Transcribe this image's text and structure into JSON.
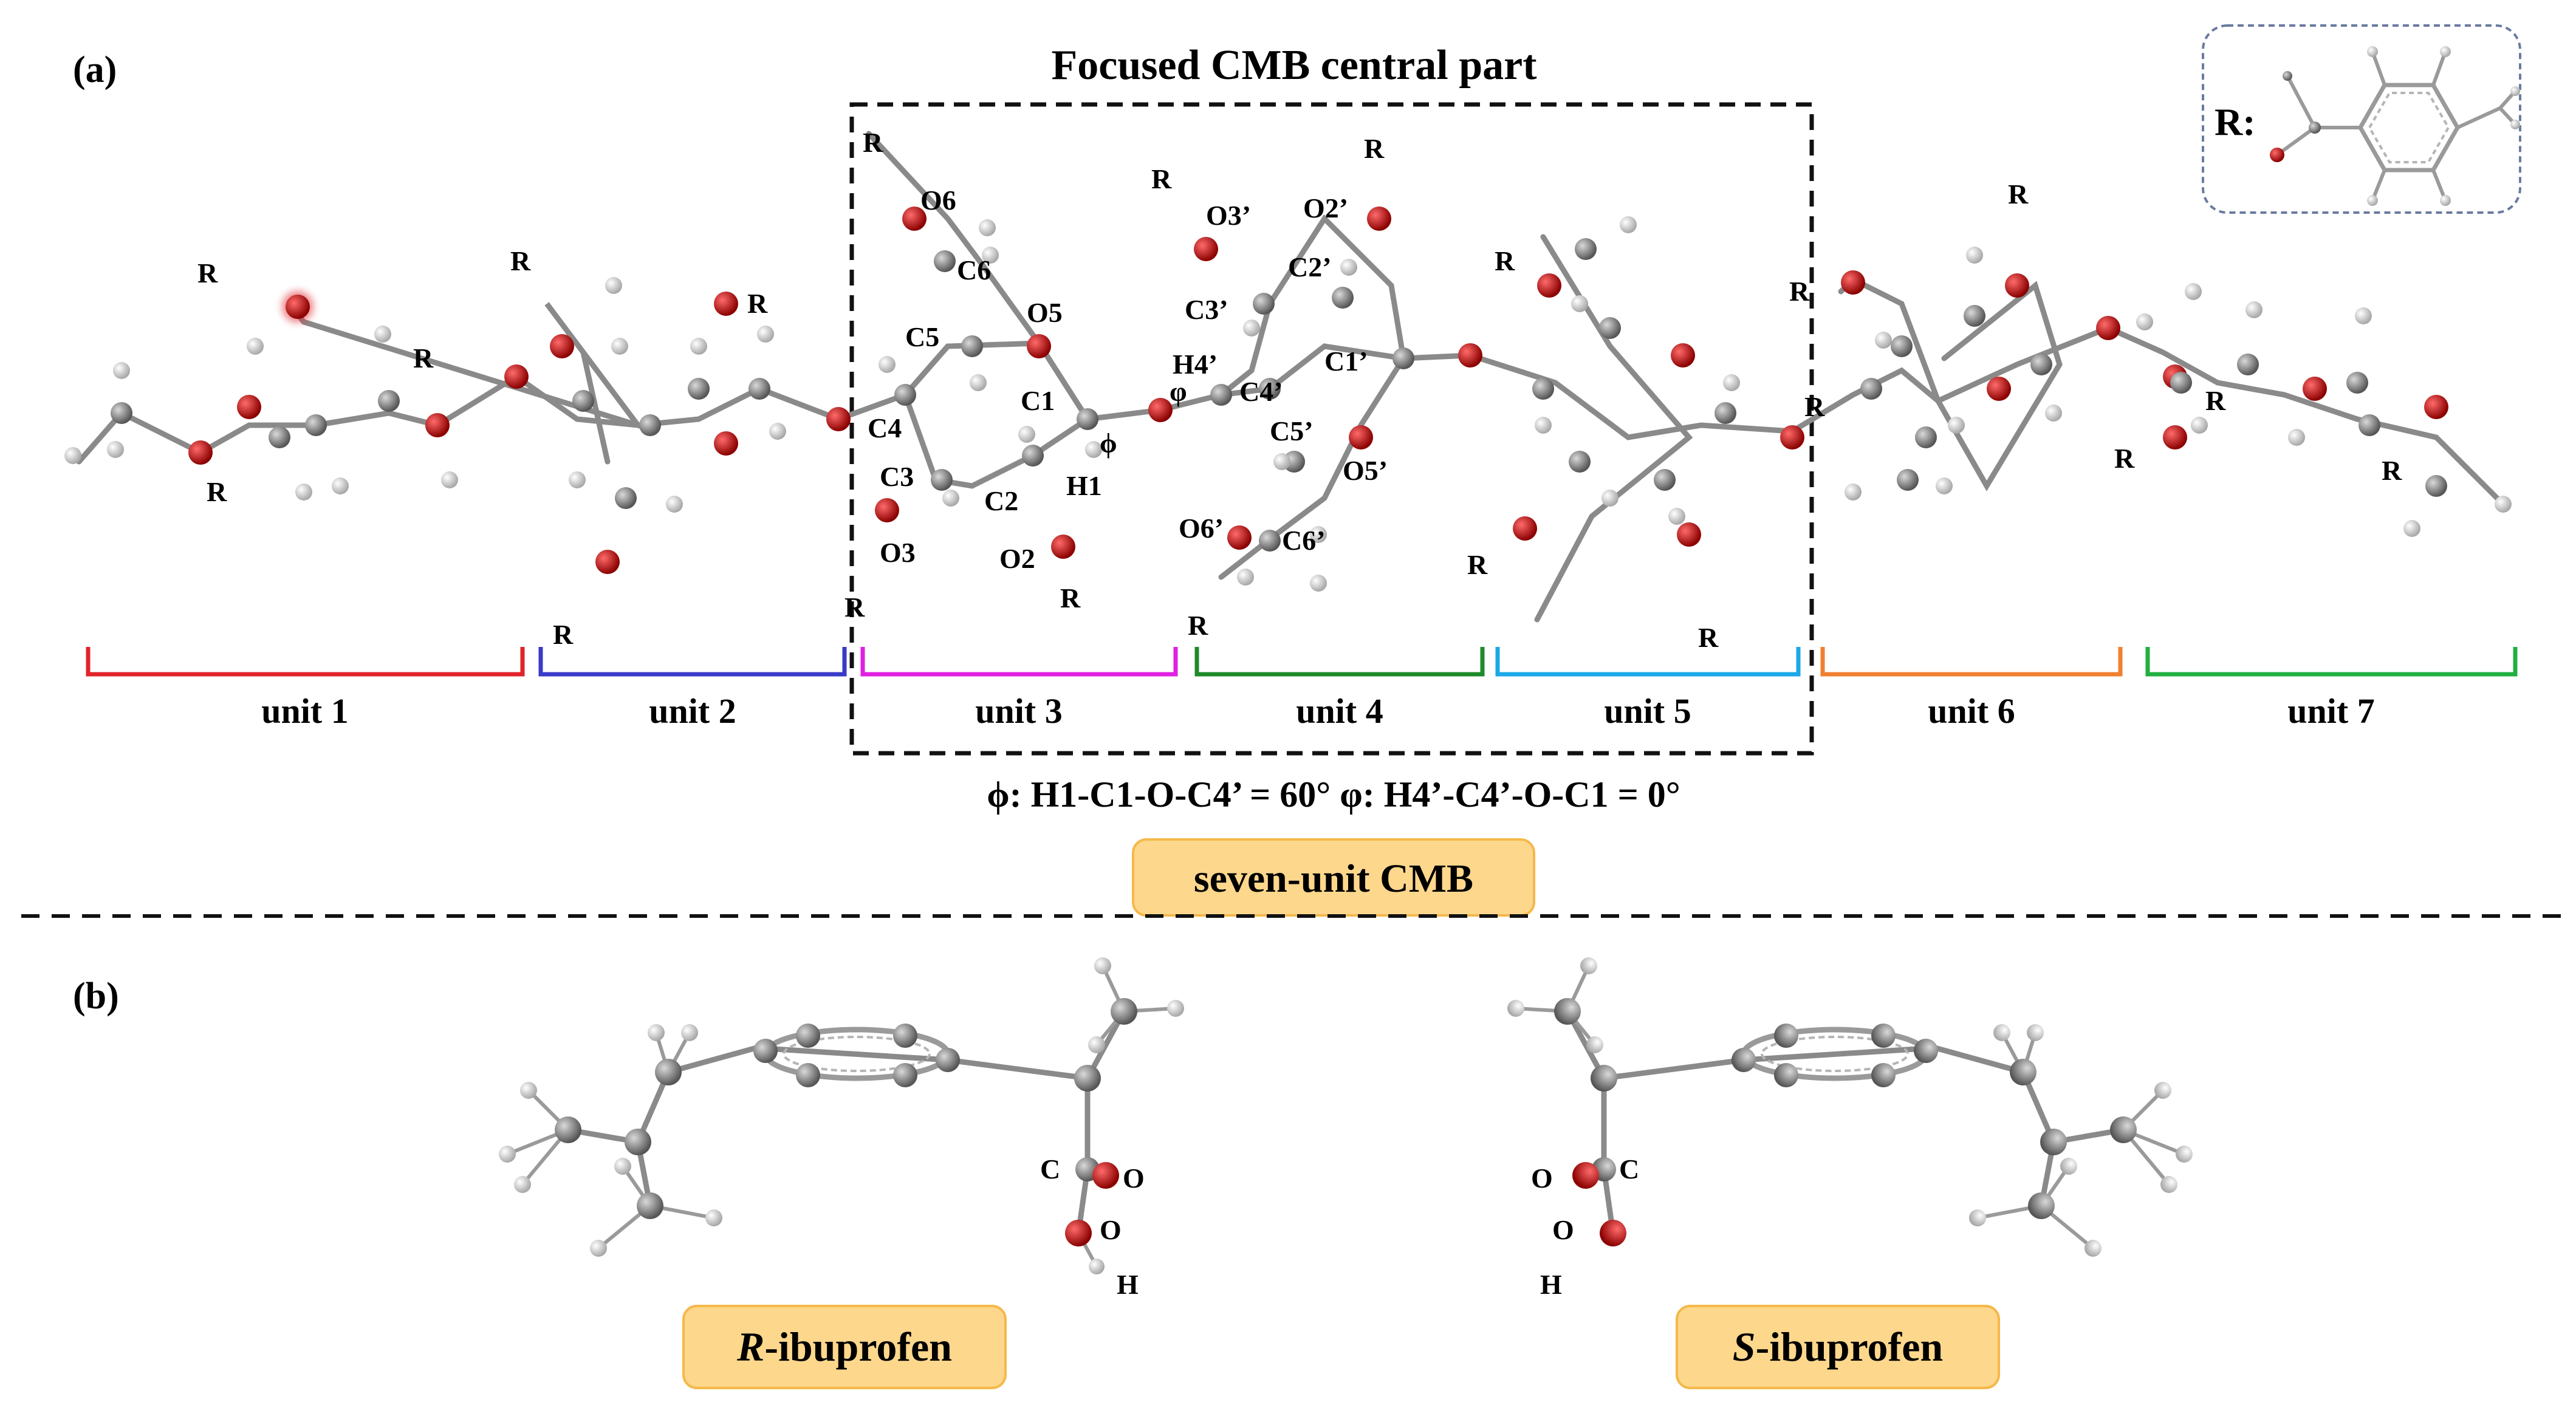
{
  "panel_a": {
    "label": "(a)",
    "focus_title": "Focused CMB central part",
    "dihedral_text": "ϕ: H1-C1-O-C4’ = 60°    φ: H4’-C4’-O-C1 = 0°",
    "cmb_badge": "seven-unit CMB",
    "r_legend": "R:",
    "r_symbol": "R",
    "units": [
      {
        "label": "unit 1",
        "color": "#e0242a"
      },
      {
        "label": "unit 2",
        "color": "#3a3ac8"
      },
      {
        "label": "unit 3",
        "color": "#e020e0"
      },
      {
        "label": "unit 4",
        "color": "#1e8a2a"
      },
      {
        "label": "unit 5",
        "color": "#1aa8e8"
      },
      {
        "label": "unit 6",
        "color": "#f08030"
      },
      {
        "label": "unit 7",
        "color": "#20b040"
      }
    ],
    "atom_labels": {
      "o6": "O6",
      "c6": "C6",
      "c5": "C5",
      "o5": "O5",
      "c1": "C1",
      "c4": "C4",
      "c3": "C3",
      "c2": "C2",
      "h1": "H1",
      "o3": "O3",
      "o2": "O2",
      "phi": "ϕ",
      "varphi": "φ",
      "o3p": "O3’",
      "o2p": "O2’",
      "c3p": "C3’",
      "c2p": "C2’",
      "c1p": "C1’",
      "h4p": "H4’",
      "c4p": "C4’",
      "c5p": "C5’",
      "o5p": "O5’",
      "o6p": "O6’",
      "c6p": "C6’"
    }
  },
  "panel_b": {
    "label": "(b)",
    "r_ibuprofen": {
      "prefix": "R",
      "suffix": "-ibuprofen"
    },
    "s_ibuprofen": {
      "prefix": "S",
      "suffix": "-ibuprofen"
    },
    "atom_labels": {
      "c": "C",
      "o_top": "O",
      "o_mid": "O",
      "h": "H"
    }
  },
  "colors": {
    "badge_fill": "#fdd78c",
    "badge_stroke": "#f5b84a",
    "oxygen": "#cc1111",
    "carbon": "#7a7a7a",
    "hydrogen": "#d8d8d8",
    "legend_border": "#6a7aa0"
  }
}
